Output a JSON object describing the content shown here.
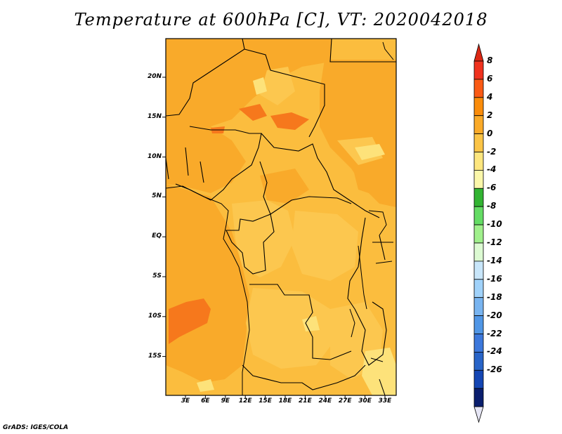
{
  "title": "Temperature at 600hPa [C], VT: 2020042018",
  "credit": "GrADS: IGES/COLA",
  "map": {
    "lat_labels": [
      "20N",
      "15N",
      "10N",
      "5N",
      "EQ",
      "5S",
      "10S",
      "15S"
    ],
    "lon_labels": [
      "3E",
      "6E",
      "9E",
      "12E",
      "15E",
      "18E",
      "21E",
      "24E",
      "27E",
      "30E",
      "33E"
    ],
    "background_color": "#fbbd3e"
  },
  "colorbar": {
    "labels": [
      "8",
      "6",
      "4",
      "2",
      "0",
      "-2",
      "-4",
      "-6",
      "-8",
      "-10",
      "-12",
      "-14",
      "-16",
      "-18",
      "-20",
      "-22",
      "-24",
      "-26"
    ],
    "colors": [
      "#f0321e",
      "#fa5a14",
      "#fa8c0a",
      "#faaa28",
      "#fbc446",
      "#fde67e",
      "#fbf7aa",
      "#32b432",
      "#64dc64",
      "#a0f08c",
      "#dcfad2",
      "#c8e6fa",
      "#a0d2fa",
      "#78b4f0",
      "#5096e6",
      "#3c78dc",
      "#2864c8",
      "#1446b4",
      "#0a1e6e"
    ],
    "top_arrow_color": "#dc2814",
    "bottom_arrow_color": "#e6e6f5"
  }
}
